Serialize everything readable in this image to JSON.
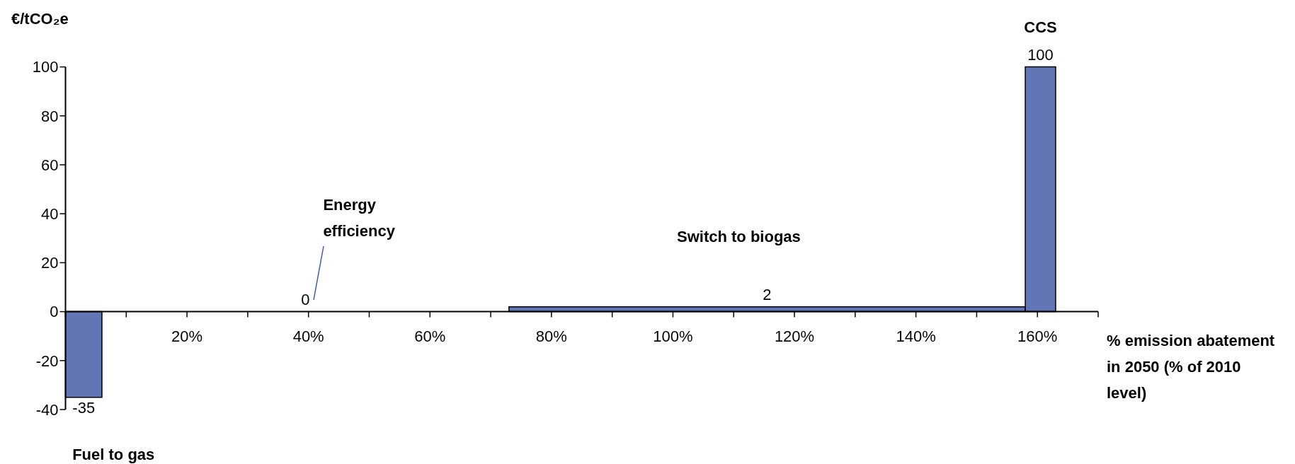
{
  "chart_data": {
    "type": "histogram",
    "ylabel": "€/tCO₂e",
    "xlabel": "% emission abatement in 2050 (% of 2010 level)",
    "bins": [
      0,
      6,
      73,
      158,
      163
    ],
    "values": [
      -35,
      0,
      2,
      100
    ],
    "color": "#6276b6",
    "data_labels": true,
    "xlim": [
      0,
      170
    ],
    "xticks": [
      {
        "value": 0,
        "label": null
      },
      {
        "value": 10,
        "label": null
      },
      {
        "value": 20,
        "label": "20%"
      },
      {
        "value": 30,
        "label": null
      },
      {
        "value": 40,
        "label": "40%"
      },
      {
        "value": 50,
        "label": null
      },
      {
        "value": 60,
        "label": "60%"
      },
      {
        "value": 70,
        "label": null
      },
      {
        "value": 80,
        "label": "80%"
      },
      {
        "value": 90,
        "label": null
      },
      {
        "value": 100,
        "label": "100%"
      },
      {
        "value": 110,
        "label": null
      },
      {
        "value": 120,
        "label": "120%"
      },
      {
        "value": 130,
        "label": null
      },
      {
        "value": 140,
        "label": "140%"
      },
      {
        "value": 150,
        "label": null
      },
      {
        "value": 160,
        "label": "160%"
      },
      {
        "value": 170,
        "label": null
      }
    ],
    "ylim": [
      -40,
      100
    ],
    "yticks": [
      -40,
      -20,
      0,
      20,
      40,
      60,
      80,
      100
    ],
    "annotations": [
      "Fuel to gas",
      "Energy efficiency",
      "Switch to biogas",
      "CCS"
    ]
  }
}
